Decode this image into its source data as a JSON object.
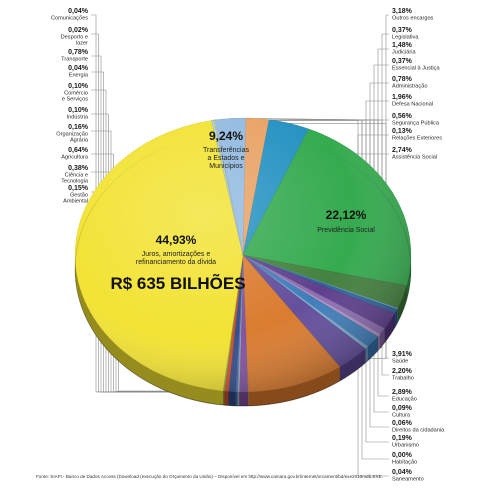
{
  "chart_data": {
    "type": "pie",
    "total_label": "R$ 635 BILHÕES",
    "source": "Fonte: SIAFI - Banco de Dados Access (Download (execução do Orçamento da União) – Disponível em http://www.camara.gov.br/internet/orcament/bd/exe2010mdb.EXE.",
    "slices": [
      {
        "key": "comunicacoes",
        "pct": "0,04%",
        "value": 0.04,
        "name": [
          "Comunicações"
        ],
        "color": "#b9a0d0",
        "side": "left"
      },
      {
        "key": "desporto",
        "pct": "0,02%",
        "value": 0.02,
        "name": [
          "Desporto e",
          "lazer"
        ],
        "color": "#c8b6d8",
        "side": "left"
      },
      {
        "key": "transporte",
        "pct": "0,78%",
        "value": 0.78,
        "name": [
          "Transporte"
        ],
        "color": "#7d4f9e",
        "side": "left"
      },
      {
        "key": "energia",
        "pct": "0,04%",
        "value": 0.04,
        "name": [
          "Energia"
        ],
        "color": "#d07090",
        "side": "left"
      },
      {
        "key": "comercio",
        "pct": "0,10%",
        "value": 0.1,
        "name": [
          "Comércio",
          "e Serviços"
        ],
        "color": "#9cc4dc",
        "side": "left"
      },
      {
        "key": "industria",
        "pct": "0,10%",
        "value": 0.1,
        "name": [
          "Indústria"
        ],
        "color": "#6d8fbf",
        "side": "left"
      },
      {
        "key": "organizacao_agraria",
        "pct": "0,16%",
        "value": 0.16,
        "name": [
          "Organização",
          "Agrária"
        ],
        "color": "#4a6aa8",
        "side": "left"
      },
      {
        "key": "agricultura",
        "pct": "0,64%",
        "value": 0.64,
        "name": [
          "Agricultura"
        ],
        "color": "#2d4a8a",
        "side": "left"
      },
      {
        "key": "ciencia",
        "pct": "0,38%",
        "value": 0.38,
        "name": [
          "Ciência e",
          "Tecnologia"
        ],
        "color": "#d04a2a",
        "side": "left"
      },
      {
        "key": "gestao_ambiental",
        "pct": "0,15%",
        "value": 0.15,
        "name": [
          "Gestão",
          "Ambiental"
        ],
        "color": "#8aa23a",
        "side": "left"
      },
      {
        "key": "juros",
        "pct": "44,93%",
        "value": 44.93,
        "name": [
          "Juros, amortizações e",
          "refinanciamento da dívida"
        ],
        "color": "#f2e22e",
        "side": "big"
      },
      {
        "key": "saneamento",
        "pct": "0,04%",
        "value": 0.04,
        "name": [
          "Saneamento"
        ],
        "color": "#9ad0a0",
        "side": "right"
      },
      {
        "key": "habitacao",
        "pct": "0,00%",
        "value": 0.0,
        "name": [
          "Habitação"
        ],
        "color": "#c0c0c0",
        "side": "right"
      },
      {
        "key": "urbanismo",
        "pct": "0,19%",
        "value": 0.19,
        "name": [
          "Urbanismo"
        ],
        "color": "#a8d8c8",
        "side": "right"
      },
      {
        "key": "direitos",
        "pct": "0,06%",
        "value": 0.06,
        "name": [
          "Direitos da cidadania"
        ],
        "color": "#e0b0a0",
        "side": "right"
      },
      {
        "key": "cultura",
        "pct": "0,09%",
        "value": 0.09,
        "name": [
          "Cultura"
        ],
        "color": "#b8c8e0",
        "side": "right"
      },
      {
        "key": "educacao",
        "pct": "2,89%",
        "value": 2.89,
        "name": [
          "Educação"
        ],
        "color": "#8fb8e0",
        "side": "right"
      },
      {
        "key": "trabalho",
        "pct": "2,20%",
        "value": 2.2,
        "name": [
          "Trabalho"
        ],
        "color": "#e8a060",
        "side": "right"
      },
      {
        "key": "saude",
        "pct": "3,91%",
        "value": 3.91,
        "name": [
          "Saúde"
        ],
        "color": "#1f8fc0",
        "side": "right"
      },
      {
        "key": "previdencia",
        "pct": "22,12%",
        "value": 22.12,
        "name": [
          "Previdência Social"
        ],
        "color": "#2fa84a",
        "side": "big"
      },
      {
        "key": "assistencia",
        "pct": "2,74%",
        "value": 2.74,
        "name": [
          "Assistência Social"
        ],
        "color": "#3f7d3a",
        "side": "right"
      },
      {
        "key": "relacoes",
        "pct": "0,13%",
        "value": 0.13,
        "name": [
          "Relações Exteriores"
        ],
        "color": "#6fb0d8",
        "side": "right"
      },
      {
        "key": "seguranca",
        "pct": "0,56%",
        "value": 0.56,
        "name": [
          "Segurança Pública"
        ],
        "color": "#2c5f9a",
        "side": "right"
      },
      {
        "key": "defesa",
        "pct": "1,96%",
        "value": 1.96,
        "name": [
          "Defesa Nacional"
        ],
        "color": "#5a3a8a",
        "side": "right"
      },
      {
        "key": "administracao",
        "pct": "0,78%",
        "value": 0.78,
        "name": [
          "Administração"
        ],
        "color": "#8a6ab0",
        "side": "right"
      },
      {
        "key": "essencial",
        "pct": "0,37%",
        "value": 0.37,
        "name": [
          "Essencial à Justiça"
        ],
        "color": "#b090c8",
        "side": "right"
      },
      {
        "key": "judiciaria",
        "pct": "1,48%",
        "value": 1.48,
        "name": [
          "Judiciária"
        ],
        "color": "#3a7ab8",
        "side": "right"
      },
      {
        "key": "legislativa",
        "pct": "0,37%",
        "value": 0.37,
        "name": [
          "Legislativa"
        ],
        "color": "#7aa8d0",
        "side": "right"
      },
      {
        "key": "outros",
        "pct": "3,18%",
        "value": 3.18,
        "name": [
          "Outros encargos"
        ],
        "color": "#5f4a9a",
        "side": "right"
      },
      {
        "key": "transferencias",
        "pct": "9,24%",
        "value": 9.24,
        "name": [
          "Transferências",
          "a Estados e",
          "Municípios"
        ],
        "color": "#d9782a",
        "side": "big"
      }
    ]
  }
}
